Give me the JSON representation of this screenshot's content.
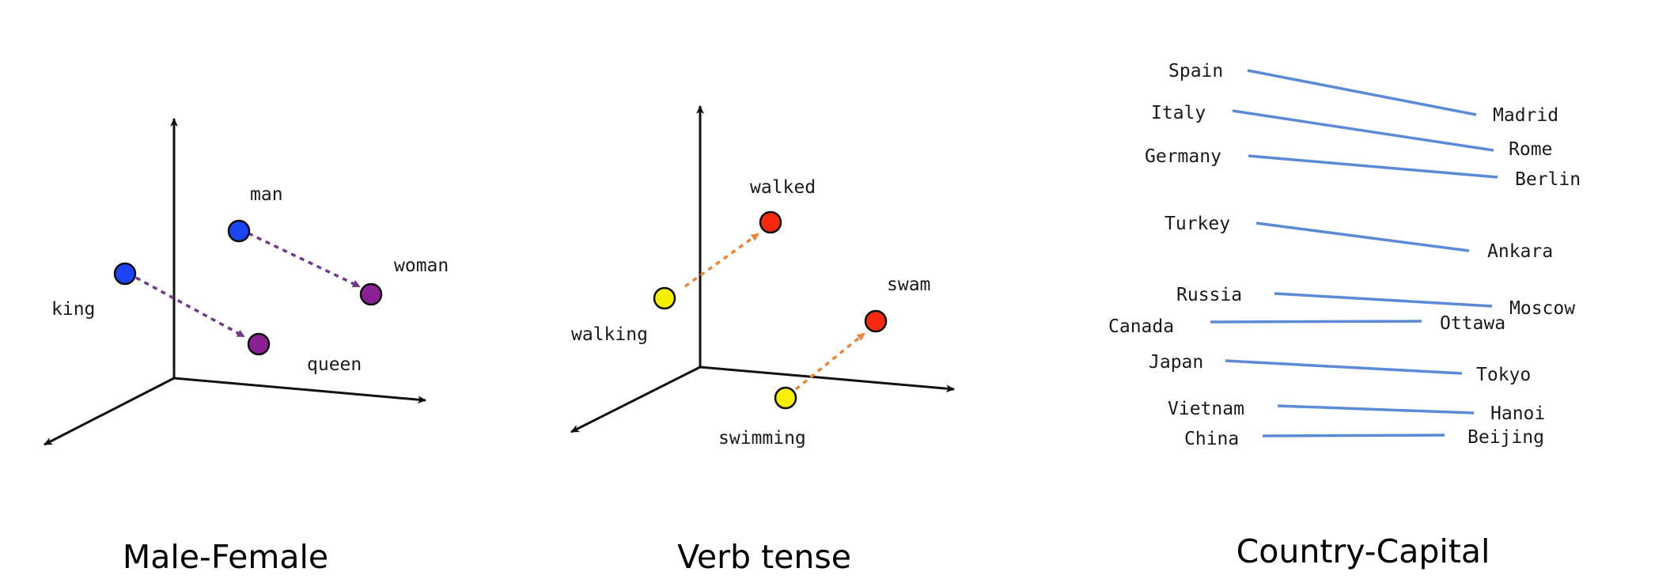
{
  "colors": {
    "axis": "#111111",
    "blue_point": "#1a44f5",
    "purple_point": "#8b1f94",
    "purple_arrow": "#6e3a8c",
    "yellow_point": "#f6f000",
    "red_point": "#f52a10",
    "orange_arrow": "#e8873a",
    "capital_line": "#5b8ad6"
  },
  "panels": [
    {
      "id": "male-female",
      "caption": "Male-Female",
      "words": [
        {
          "id": "king",
          "label": "king",
          "color_key": "blue_point"
        },
        {
          "id": "man",
          "label": "man",
          "color_key": "blue_point"
        },
        {
          "id": "queen",
          "label": "queen",
          "color_key": "purple_point"
        },
        {
          "id": "woman",
          "label": "woman",
          "color_key": "purple_point"
        }
      ],
      "arrows": [
        {
          "from": "king",
          "to": "queen",
          "color_key": "purple_arrow"
        },
        {
          "from": "man",
          "to": "woman",
          "color_key": "purple_arrow"
        }
      ]
    },
    {
      "id": "verb-tense",
      "caption": "Verb tense",
      "words": [
        {
          "id": "walking",
          "label": "walking",
          "color_key": "yellow_point"
        },
        {
          "id": "walked",
          "label": "walked",
          "color_key": "red_point"
        },
        {
          "id": "swimming",
          "label": "swimming",
          "color_key": "yellow_point"
        },
        {
          "id": "swam",
          "label": "swam",
          "color_key": "red_point"
        }
      ],
      "arrows": [
        {
          "from": "walking",
          "to": "walked",
          "color_key": "orange_arrow"
        },
        {
          "from": "swimming",
          "to": "swam",
          "color_key": "orange_arrow"
        }
      ]
    },
    {
      "id": "country-capital",
      "caption": "Country-Capital",
      "pairs": [
        {
          "country": "Spain",
          "capital": "Madrid"
        },
        {
          "country": "Italy",
          "capital": "Rome"
        },
        {
          "country": "Germany",
          "capital": "Berlin"
        },
        {
          "country": "Turkey",
          "capital": "Ankara"
        },
        {
          "country": "Russia",
          "capital": "Moscow"
        },
        {
          "country": "Canada",
          "capital": "Ottawa"
        },
        {
          "country": "Japan",
          "capital": "Tokyo"
        },
        {
          "country": "Vietnam",
          "capital": "Hanoi"
        },
        {
          "country": "China",
          "capital": "Beijing"
        }
      ]
    }
  ]
}
